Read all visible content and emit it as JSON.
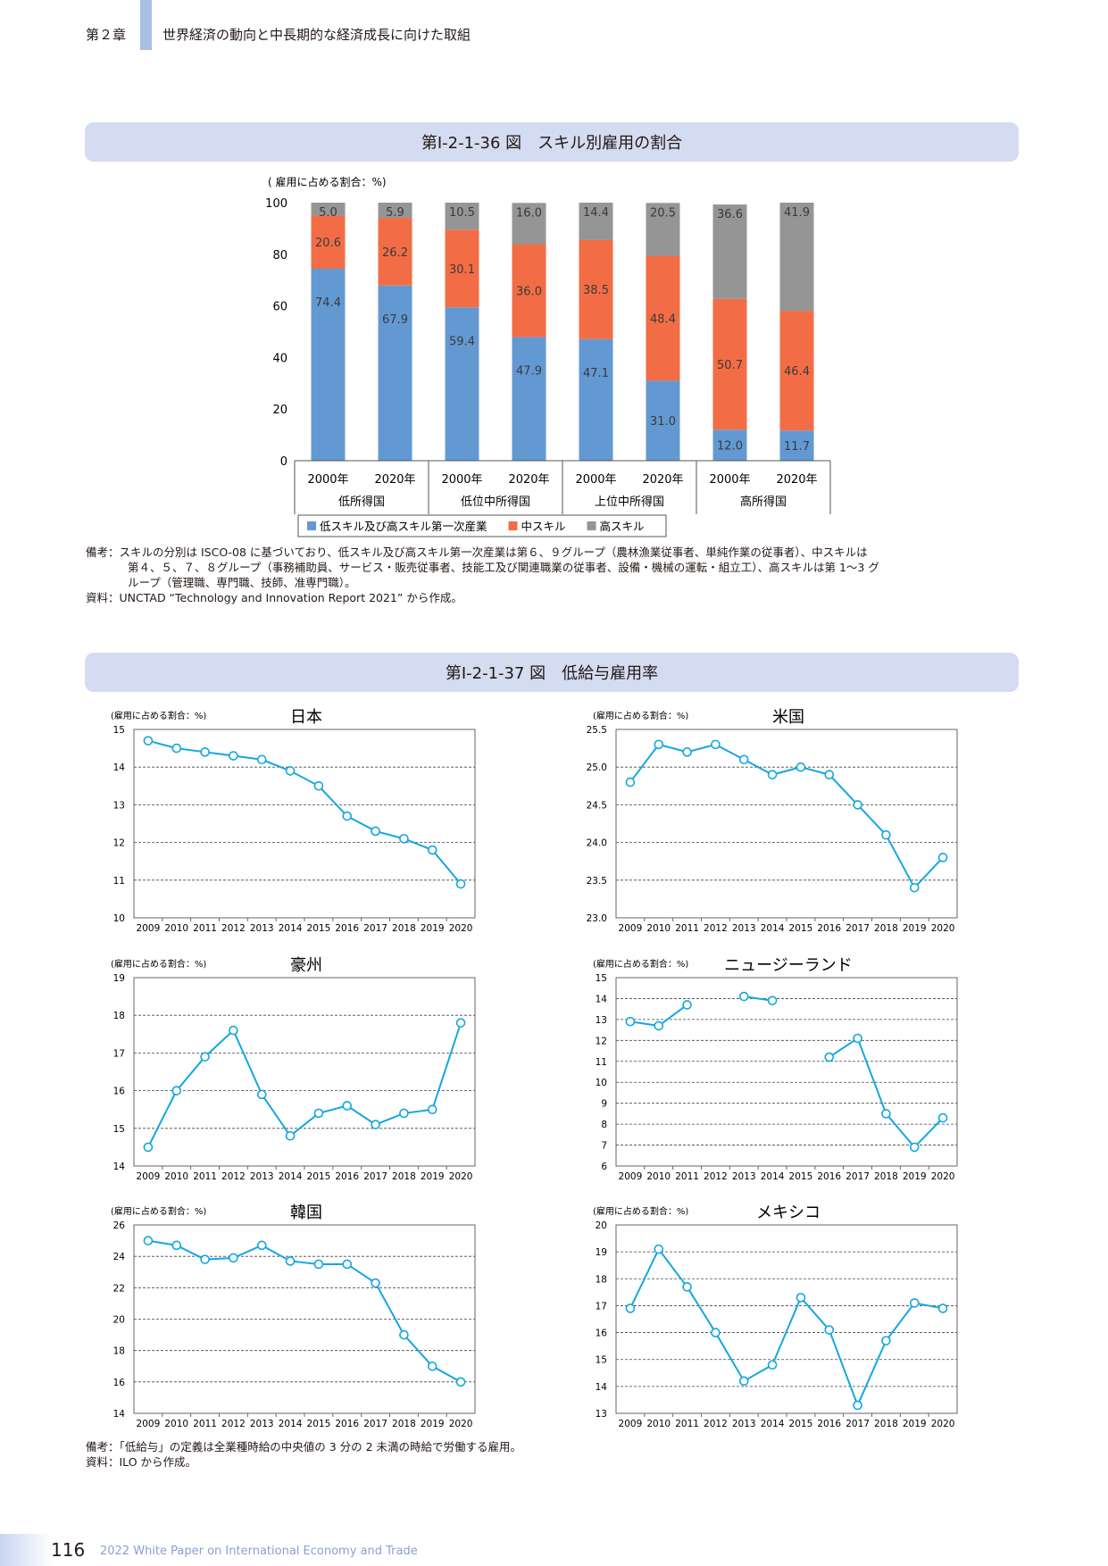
{
  "header": {
    "chapter": "第２章",
    "title": "世界経済の動向と中長期的な経済成長に向けた取組"
  },
  "fig36": {
    "title": "第Ⅰ-2-1-36 図　スキル別雇用の割合",
    "unit": "( 雇用に占める割合：%)",
    "chart_data": {
      "type": "bar",
      "stacked": true,
      "ylim": [
        0,
        100
      ],
      "yticks": [
        0,
        20,
        40,
        60,
        80,
        100
      ],
      "categories": [
        "2000年",
        "2020年",
        "2000年",
        "2020年",
        "2000年",
        "2020年",
        "2000年",
        "2020年"
      ],
      "groups": [
        "低所得国",
        "低位中所得国",
        "上位中所得国",
        "高所得国"
      ],
      "series": [
        {
          "name": "低スキル及び高スキル第一次産業",
          "color": "#6399d2",
          "values": [
            74.4,
            67.9,
            59.4,
            47.9,
            47.1,
            31.0,
            12.0,
            11.7
          ]
        },
        {
          "name": "中スキル",
          "color": "#f26d45",
          "values": [
            20.6,
            26.2,
            30.1,
            36.0,
            38.5,
            48.4,
            50.7,
            46.4
          ]
        },
        {
          "name": "高スキル",
          "color": "#959595",
          "values": [
            5.0,
            5.9,
            10.5,
            16.0,
            14.4,
            20.5,
            36.6,
            41.9
          ]
        }
      ],
      "labels": [
        [
          "74.4",
          "67.9",
          "59.4",
          "47.9",
          "47.1",
          "31.0",
          "12.0",
          "11.7"
        ],
        [
          "20.6",
          "26.2",
          "30.1",
          "36.0",
          "38.5",
          "48.4",
          "50.7",
          "46.4"
        ],
        [
          "5.0",
          "5.9",
          "10.5",
          "16.0",
          "14.4",
          "20.5",
          "36.6",
          "41.9"
        ]
      ]
    },
    "note": "備考：スキルの分別は ISCO-08 に基づいており、低スキル及び高スキル第一次産業は第６、９グループ（農林漁業従事者、単純作業の従事者）、中スキルは",
    "note2": "第４、５、７、８グループ（事務補助員、サービス・販売従事者、技能工及び関連職業の従事者、設備・機械の運転・組立工）、高スキルは第 1〜3 グ",
    "note3": "ループ（管理職、専門職、技師、准専門職）。",
    "source": "資料：UNCTAD “Technology and Innovation Report 2021” から作成。"
  },
  "fig37": {
    "title": "第Ⅰ-2-1-37 図　低給与雇用率",
    "chart_data": [
      {
        "type": "line",
        "title": "日本",
        "unit": "(雇用に占める割合：%)",
        "x": [
          2009,
          2010,
          2011,
          2012,
          2013,
          2014,
          2015,
          2016,
          2017,
          2018,
          2019,
          2020
        ],
        "ylim": [
          10,
          15
        ],
        "yticks": [
          "10",
          "11",
          "12",
          "13",
          "14",
          "15"
        ],
        "values": [
          14.7,
          14.5,
          14.4,
          14.3,
          14.2,
          13.9,
          13.5,
          12.7,
          12.3,
          12.1,
          11.8,
          10.9
        ]
      },
      {
        "type": "line",
        "title": "米国",
        "unit": "(雇用に占める割合：%)",
        "x": [
          2009,
          2010,
          2011,
          2012,
          2013,
          2014,
          2015,
          2016,
          2017,
          2018,
          2019,
          2020
        ],
        "ylim": [
          23.0,
          25.5
        ],
        "yticks": [
          "23.0",
          "23.5",
          "24.0",
          "24.5",
          "25.0",
          "25.5"
        ],
        "values": [
          24.8,
          25.3,
          25.2,
          25.3,
          25.1,
          24.9,
          25.0,
          24.9,
          24.5,
          24.1,
          23.4,
          23.8
        ]
      },
      {
        "type": "line",
        "title": "豪州",
        "unit": "(雇用に占める割合：%)",
        "x": [
          2009,
          2010,
          2011,
          2012,
          2013,
          2014,
          2015,
          2016,
          2017,
          2018,
          2019,
          2020
        ],
        "ylim": [
          14,
          19
        ],
        "yticks": [
          "14",
          "15",
          "16",
          "17",
          "18",
          "19"
        ],
        "values": [
          14.5,
          16.0,
          16.9,
          17.6,
          15.9,
          14.8,
          15.4,
          15.6,
          15.1,
          15.4,
          15.5,
          17.8
        ]
      },
      {
        "type": "line",
        "title": "ニュージーランド",
        "unit": "(雇用に占める割合：%)",
        "x": [
          2009,
          2010,
          2011,
          2012,
          2013,
          2014,
          2015,
          2016,
          2017,
          2018,
          2019,
          2020
        ],
        "ylim": [
          6,
          15
        ],
        "yticks": [
          "6",
          "7",
          "8",
          "9",
          "10",
          "11",
          "12",
          "13",
          "14",
          "15"
        ],
        "values": [
          12.9,
          12.7,
          13.7,
          null,
          14.1,
          13.9,
          null,
          11.2,
          12.1,
          8.5,
          6.9,
          8.3
        ]
      },
      {
        "type": "line",
        "title": "韓国",
        "unit": "(雇用に占める割合：%)",
        "x": [
          2009,
          2010,
          2011,
          2012,
          2013,
          2014,
          2015,
          2016,
          2017,
          2018,
          2019,
          2020
        ],
        "ylim": [
          14,
          26
        ],
        "yticks": [
          "14",
          "16",
          "18",
          "20",
          "22",
          "24",
          "26"
        ],
        "values": [
          25.0,
          24.7,
          23.8,
          23.9,
          24.7,
          23.7,
          23.5,
          23.5,
          22.3,
          19.0,
          17.0,
          16.0
        ]
      },
      {
        "type": "line",
        "title": "メキシコ",
        "unit": "(雇用に占める割合：%)",
        "x": [
          2009,
          2010,
          2011,
          2012,
          2013,
          2014,
          2015,
          2016,
          2017,
          2018,
          2019,
          2020
        ],
        "ylim": [
          13,
          20
        ],
        "yticks": [
          "13",
          "14",
          "15",
          "16",
          "17",
          "18",
          "19",
          "20"
        ],
        "values": [
          16.9,
          19.1,
          17.7,
          16.0,
          14.2,
          14.8,
          17.3,
          16.1,
          13.3,
          15.7,
          17.1,
          16.9
        ]
      }
    ],
    "note": "備考：「低給与」の定義は全業種時給の中央値の 3 分の 2 未満の時給で労働する雇用。",
    "source": "資料：ILO から作成。"
  },
  "footer": {
    "page": "116",
    "text": "2022 White Paper on International Economy and Trade"
  }
}
